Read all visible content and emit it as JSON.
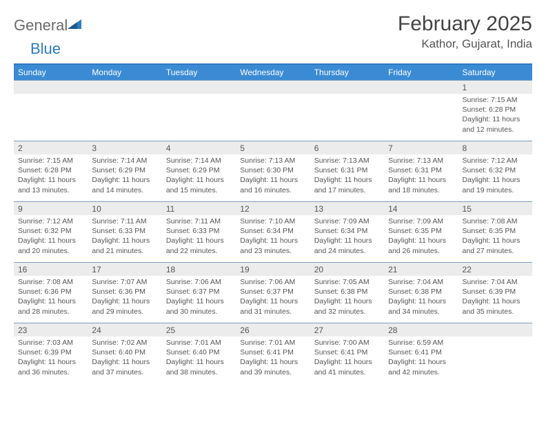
{
  "logo": {
    "text1": "General",
    "text2": "Blue",
    "color1": "#6a6a6a",
    "color2": "#2f7bbf"
  },
  "header": {
    "month": "February 2025",
    "location": "Kathor, Gujarat, India"
  },
  "colors": {
    "header_bg": "#3b8bd4",
    "header_border_top": "#2f7bbf",
    "row_divider": "#7a9ec2",
    "daynum_bg": "#ececec",
    "text": "#555555"
  },
  "dayLabels": [
    "Sunday",
    "Monday",
    "Tuesday",
    "Wednesday",
    "Thursday",
    "Friday",
    "Saturday"
  ],
  "grid": [
    [
      {
        "n": "",
        "sr": "",
        "ss": "",
        "dl": ""
      },
      {
        "n": "",
        "sr": "",
        "ss": "",
        "dl": ""
      },
      {
        "n": "",
        "sr": "",
        "ss": "",
        "dl": ""
      },
      {
        "n": "",
        "sr": "",
        "ss": "",
        "dl": ""
      },
      {
        "n": "",
        "sr": "",
        "ss": "",
        "dl": ""
      },
      {
        "n": "",
        "sr": "",
        "ss": "",
        "dl": ""
      },
      {
        "n": "1",
        "sr": "Sunrise: 7:15 AM",
        "ss": "Sunset: 6:28 PM",
        "dl": "Daylight: 11 hours and 12 minutes."
      }
    ],
    [
      {
        "n": "2",
        "sr": "Sunrise: 7:15 AM",
        "ss": "Sunset: 6:28 PM",
        "dl": "Daylight: 11 hours and 13 minutes."
      },
      {
        "n": "3",
        "sr": "Sunrise: 7:14 AM",
        "ss": "Sunset: 6:29 PM",
        "dl": "Daylight: 11 hours and 14 minutes."
      },
      {
        "n": "4",
        "sr": "Sunrise: 7:14 AM",
        "ss": "Sunset: 6:29 PM",
        "dl": "Daylight: 11 hours and 15 minutes."
      },
      {
        "n": "5",
        "sr": "Sunrise: 7:13 AM",
        "ss": "Sunset: 6:30 PM",
        "dl": "Daylight: 11 hours and 16 minutes."
      },
      {
        "n": "6",
        "sr": "Sunrise: 7:13 AM",
        "ss": "Sunset: 6:31 PM",
        "dl": "Daylight: 11 hours and 17 minutes."
      },
      {
        "n": "7",
        "sr": "Sunrise: 7:13 AM",
        "ss": "Sunset: 6:31 PM",
        "dl": "Daylight: 11 hours and 18 minutes."
      },
      {
        "n": "8",
        "sr": "Sunrise: 7:12 AM",
        "ss": "Sunset: 6:32 PM",
        "dl": "Daylight: 11 hours and 19 minutes."
      }
    ],
    [
      {
        "n": "9",
        "sr": "Sunrise: 7:12 AM",
        "ss": "Sunset: 6:32 PM",
        "dl": "Daylight: 11 hours and 20 minutes."
      },
      {
        "n": "10",
        "sr": "Sunrise: 7:11 AM",
        "ss": "Sunset: 6:33 PM",
        "dl": "Daylight: 11 hours and 21 minutes."
      },
      {
        "n": "11",
        "sr": "Sunrise: 7:11 AM",
        "ss": "Sunset: 6:33 PM",
        "dl": "Daylight: 11 hours and 22 minutes."
      },
      {
        "n": "12",
        "sr": "Sunrise: 7:10 AM",
        "ss": "Sunset: 6:34 PM",
        "dl": "Daylight: 11 hours and 23 minutes."
      },
      {
        "n": "13",
        "sr": "Sunrise: 7:09 AM",
        "ss": "Sunset: 6:34 PM",
        "dl": "Daylight: 11 hours and 24 minutes."
      },
      {
        "n": "14",
        "sr": "Sunrise: 7:09 AM",
        "ss": "Sunset: 6:35 PM",
        "dl": "Daylight: 11 hours and 26 minutes."
      },
      {
        "n": "15",
        "sr": "Sunrise: 7:08 AM",
        "ss": "Sunset: 6:35 PM",
        "dl": "Daylight: 11 hours and 27 minutes."
      }
    ],
    [
      {
        "n": "16",
        "sr": "Sunrise: 7:08 AM",
        "ss": "Sunset: 6:36 PM",
        "dl": "Daylight: 11 hours and 28 minutes."
      },
      {
        "n": "17",
        "sr": "Sunrise: 7:07 AM",
        "ss": "Sunset: 6:36 PM",
        "dl": "Daylight: 11 hours and 29 minutes."
      },
      {
        "n": "18",
        "sr": "Sunrise: 7:06 AM",
        "ss": "Sunset: 6:37 PM",
        "dl": "Daylight: 11 hours and 30 minutes."
      },
      {
        "n": "19",
        "sr": "Sunrise: 7:06 AM",
        "ss": "Sunset: 6:37 PM",
        "dl": "Daylight: 11 hours and 31 minutes."
      },
      {
        "n": "20",
        "sr": "Sunrise: 7:05 AM",
        "ss": "Sunset: 6:38 PM",
        "dl": "Daylight: 11 hours and 32 minutes."
      },
      {
        "n": "21",
        "sr": "Sunrise: 7:04 AM",
        "ss": "Sunset: 6:38 PM",
        "dl": "Daylight: 11 hours and 34 minutes."
      },
      {
        "n": "22",
        "sr": "Sunrise: 7:04 AM",
        "ss": "Sunset: 6:39 PM",
        "dl": "Daylight: 11 hours and 35 minutes."
      }
    ],
    [
      {
        "n": "23",
        "sr": "Sunrise: 7:03 AM",
        "ss": "Sunset: 6:39 PM",
        "dl": "Daylight: 11 hours and 36 minutes."
      },
      {
        "n": "24",
        "sr": "Sunrise: 7:02 AM",
        "ss": "Sunset: 6:40 PM",
        "dl": "Daylight: 11 hours and 37 minutes."
      },
      {
        "n": "25",
        "sr": "Sunrise: 7:01 AM",
        "ss": "Sunset: 6:40 PM",
        "dl": "Daylight: 11 hours and 38 minutes."
      },
      {
        "n": "26",
        "sr": "Sunrise: 7:01 AM",
        "ss": "Sunset: 6:41 PM",
        "dl": "Daylight: 11 hours and 39 minutes."
      },
      {
        "n": "27",
        "sr": "Sunrise: 7:00 AM",
        "ss": "Sunset: 6:41 PM",
        "dl": "Daylight: 11 hours and 41 minutes."
      },
      {
        "n": "28",
        "sr": "Sunrise: 6:59 AM",
        "ss": "Sunset: 6:41 PM",
        "dl": "Daylight: 11 hours and 42 minutes."
      },
      {
        "n": "",
        "sr": "",
        "ss": "",
        "dl": ""
      }
    ]
  ]
}
